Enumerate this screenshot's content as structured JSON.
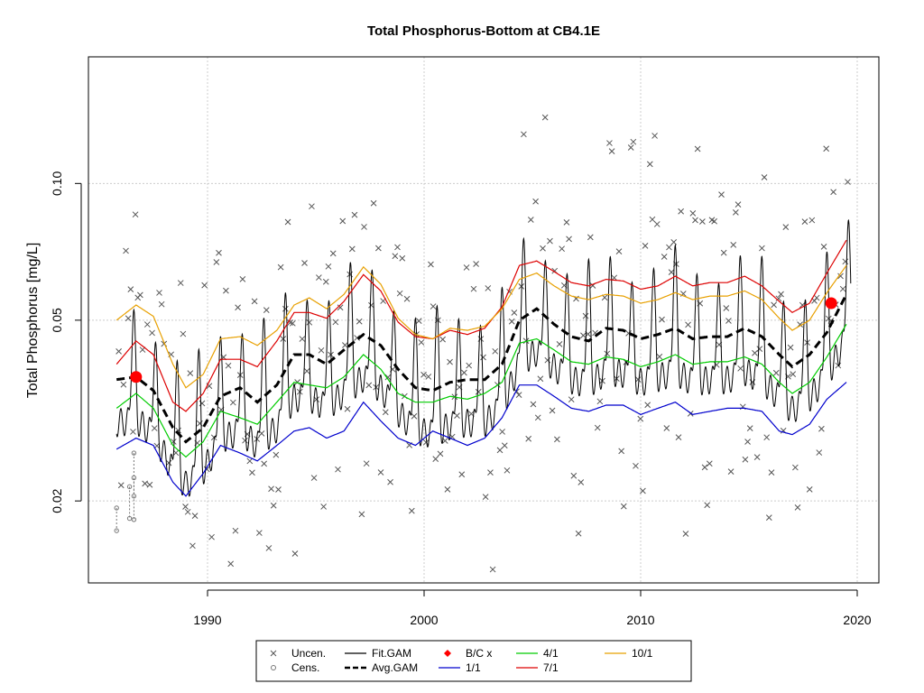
{
  "chart_data": {
    "type": "line",
    "title": "Total Phosphorus-Bottom at CB4.1E",
    "xlabel": "",
    "ylabel": "Total Phosphorus [mg/L]",
    "y_scale": "log",
    "xlim": [
      1984.5,
      2021.0
    ],
    "ylim": [
      0.0132,
      0.19
    ],
    "x_ticks": [
      1990,
      2000,
      2010,
      2020
    ],
    "y_ticks": [
      0.02,
      0.05,
      0.1
    ],
    "y_tick_labels": [
      "0.02",
      "0.05",
      "0.10"
    ],
    "grid": true,
    "legend_position": "bottom",
    "colors": {
      "uncensored": "#555555",
      "censored": "#777777",
      "fit_gam": "#000000",
      "avg_gam": "#000000",
      "bc": "#ff0000",
      "d1_1": "#0000cd",
      "d4_1": "#00cc00",
      "d7_1": "#dd0000",
      "d10_1": "#e8a000"
    },
    "series": [
      {
        "name": "Avg.GAM",
        "x": [
          1985.8,
          1986.7,
          1987.5,
          1988.4,
          1989.0,
          1989.8,
          1990.6,
          1991.5,
          1992.3,
          1993.2,
          1994.0,
          1994.7,
          1995.5,
          1996.3,
          1997.2,
          1998.0,
          1998.8,
          1999.6,
          2000.4,
          2001.2,
          2002.0,
          2002.8,
          2003.6,
          2004.4,
          2005.2,
          2006.0,
          2006.8,
          2007.6,
          2008.4,
          2009.2,
          2010.0,
          2010.8,
          2011.6,
          2012.4,
          2013.2,
          2014.0,
          2014.8,
          2015.6,
          2016.4,
          2017.0,
          2017.8,
          2018.6,
          2019.5
        ],
        "values": [
          0.037,
          0.0375,
          0.035,
          0.029,
          0.027,
          0.029,
          0.034,
          0.0355,
          0.033,
          0.036,
          0.042,
          0.042,
          0.04,
          0.043,
          0.0465,
          0.044,
          0.039,
          0.0355,
          0.035,
          0.0365,
          0.037,
          0.037,
          0.04,
          0.05,
          0.053,
          0.049,
          0.046,
          0.045,
          0.048,
          0.0475,
          0.0455,
          0.0465,
          0.048,
          0.0455,
          0.046,
          0.046,
          0.048,
          0.046,
          0.042,
          0.0395,
          0.042,
          0.047,
          0.057
        ]
      },
      {
        "name": "1/1",
        "x": [
          1985.8,
          1986.7,
          1987.5,
          1988.4,
          1989.0,
          1989.8,
          1990.6,
          1991.5,
          1992.3,
          1993.2,
          1994.0,
          1994.7,
          1995.5,
          1996.3,
          1997.2,
          1998.0,
          1998.8,
          1999.6,
          2000.4,
          2001.2,
          2002.0,
          2002.8,
          2003.6,
          2004.4,
          2005.2,
          2006.0,
          2006.8,
          2007.6,
          2008.4,
          2009.2,
          2010.0,
          2010.8,
          2011.6,
          2012.4,
          2013.2,
          2014.0,
          2014.8,
          2015.6,
          2016.4,
          2017.0,
          2017.8,
          2018.6,
          2019.5
        ],
        "values": [
          0.026,
          0.0275,
          0.0265,
          0.022,
          0.0205,
          0.023,
          0.0265,
          0.0255,
          0.0245,
          0.0265,
          0.0285,
          0.029,
          0.0275,
          0.0285,
          0.033,
          0.03,
          0.0275,
          0.0265,
          0.0285,
          0.0275,
          0.0265,
          0.0275,
          0.0305,
          0.036,
          0.036,
          0.034,
          0.032,
          0.0315,
          0.0325,
          0.0325,
          0.031,
          0.032,
          0.033,
          0.031,
          0.0315,
          0.032,
          0.032,
          0.0315,
          0.0285,
          0.028,
          0.0295,
          0.0335,
          0.0365
        ]
      },
      {
        "name": "4/1",
        "x": [
          1985.8,
          1986.7,
          1987.5,
          1988.4,
          1989.0,
          1989.8,
          1990.6,
          1991.5,
          1992.3,
          1993.2,
          1994.0,
          1994.7,
          1995.5,
          1996.3,
          1997.2,
          1998.0,
          1998.8,
          1999.6,
          2000.4,
          2001.2,
          2002.0,
          2002.8,
          2003.6,
          2004.4,
          2005.2,
          2006.0,
          2006.8,
          2007.6,
          2008.4,
          2009.2,
          2010.0,
          2010.8,
          2011.6,
          2012.4,
          2013.2,
          2014.0,
          2014.8,
          2015.6,
          2016.4,
          2017.0,
          2017.8,
          2018.6,
          2019.5
        ],
        "values": [
          0.032,
          0.0345,
          0.032,
          0.0265,
          0.025,
          0.027,
          0.0315,
          0.0305,
          0.0295,
          0.033,
          0.0365,
          0.036,
          0.0355,
          0.0375,
          0.042,
          0.039,
          0.0345,
          0.033,
          0.033,
          0.034,
          0.0335,
          0.0345,
          0.0365,
          0.0445,
          0.0455,
          0.043,
          0.0405,
          0.04,
          0.0415,
          0.041,
          0.0395,
          0.0405,
          0.042,
          0.04,
          0.0405,
          0.0405,
          0.0415,
          0.04,
          0.0365,
          0.0345,
          0.0365,
          0.0415,
          0.049
        ]
      },
      {
        "name": "7/1",
        "x": [
          1985.8,
          1986.7,
          1987.5,
          1988.4,
          1989.0,
          1989.8,
          1990.6,
          1991.5,
          1992.3,
          1993.2,
          1994.0,
          1994.7,
          1995.5,
          1996.3,
          1997.2,
          1998.0,
          1998.8,
          1999.6,
          2000.4,
          2001.2,
          2002.0,
          2002.8,
          2003.6,
          2004.4,
          2005.2,
          2006.0,
          2006.8,
          2007.6,
          2008.4,
          2009.2,
          2010.0,
          2010.8,
          2011.6,
          2012.4,
          2013.2,
          2014.0,
          2014.8,
          2015.6,
          2016.4,
          2017.0,
          2017.8,
          2018.6,
          2019.5
        ],
        "values": [
          0.04,
          0.045,
          0.042,
          0.033,
          0.0315,
          0.0345,
          0.041,
          0.041,
          0.0395,
          0.045,
          0.052,
          0.052,
          0.0505,
          0.055,
          0.063,
          0.058,
          0.0495,
          0.046,
          0.0455,
          0.0475,
          0.0465,
          0.048,
          0.0535,
          0.066,
          0.0675,
          0.064,
          0.0605,
          0.0595,
          0.0615,
          0.061,
          0.0585,
          0.0595,
          0.0625,
          0.0595,
          0.0605,
          0.0605,
          0.0625,
          0.0595,
          0.055,
          0.052,
          0.0545,
          0.0635,
          0.075
        ]
      },
      {
        "name": "10/1",
        "x": [
          1985.8,
          1986.7,
          1987.5,
          1988.4,
          1989.0,
          1989.8,
          1990.6,
          1991.5,
          1992.3,
          1993.2,
          1994.0,
          1994.7,
          1995.5,
          1996.3,
          1997.2,
          1998.0,
          1998.8,
          1999.6,
          2000.4,
          2001.2,
          2002.0,
          2002.8,
          2003.6,
          2004.4,
          2005.2,
          2006.0,
          2006.8,
          2007.6,
          2008.4,
          2009.2,
          2010.0,
          2010.8,
          2011.6,
          2012.4,
          2013.2,
          2014.0,
          2014.8,
          2015.6,
          2016.4,
          2017.0,
          2017.8,
          2018.6,
          2019.5
        ],
        "values": [
          0.05,
          0.054,
          0.051,
          0.04,
          0.0355,
          0.038,
          0.0455,
          0.046,
          0.044,
          0.0475,
          0.054,
          0.056,
          0.053,
          0.057,
          0.0655,
          0.06,
          0.0505,
          0.0465,
          0.0455,
          0.048,
          0.0475,
          0.0485,
          0.053,
          0.0615,
          0.0635,
          0.0595,
          0.0565,
          0.0555,
          0.057,
          0.0565,
          0.0545,
          0.0555,
          0.0575,
          0.0555,
          0.0565,
          0.0565,
          0.058,
          0.0555,
          0.0505,
          0.0475,
          0.05,
          0.0575,
          0.066
        ]
      }
    ],
    "bc_points": {
      "name": "B/C x",
      "x": [
        1986.7,
        2018.8
      ],
      "values": [
        0.0375,
        0.0545
      ]
    },
    "legend": [
      "Uncen.",
      "Cens.",
      "Fit.GAM",
      "Avg.GAM",
      "B/C x",
      "1/1",
      "4/1",
      "7/1",
      "10/1"
    ]
  }
}
